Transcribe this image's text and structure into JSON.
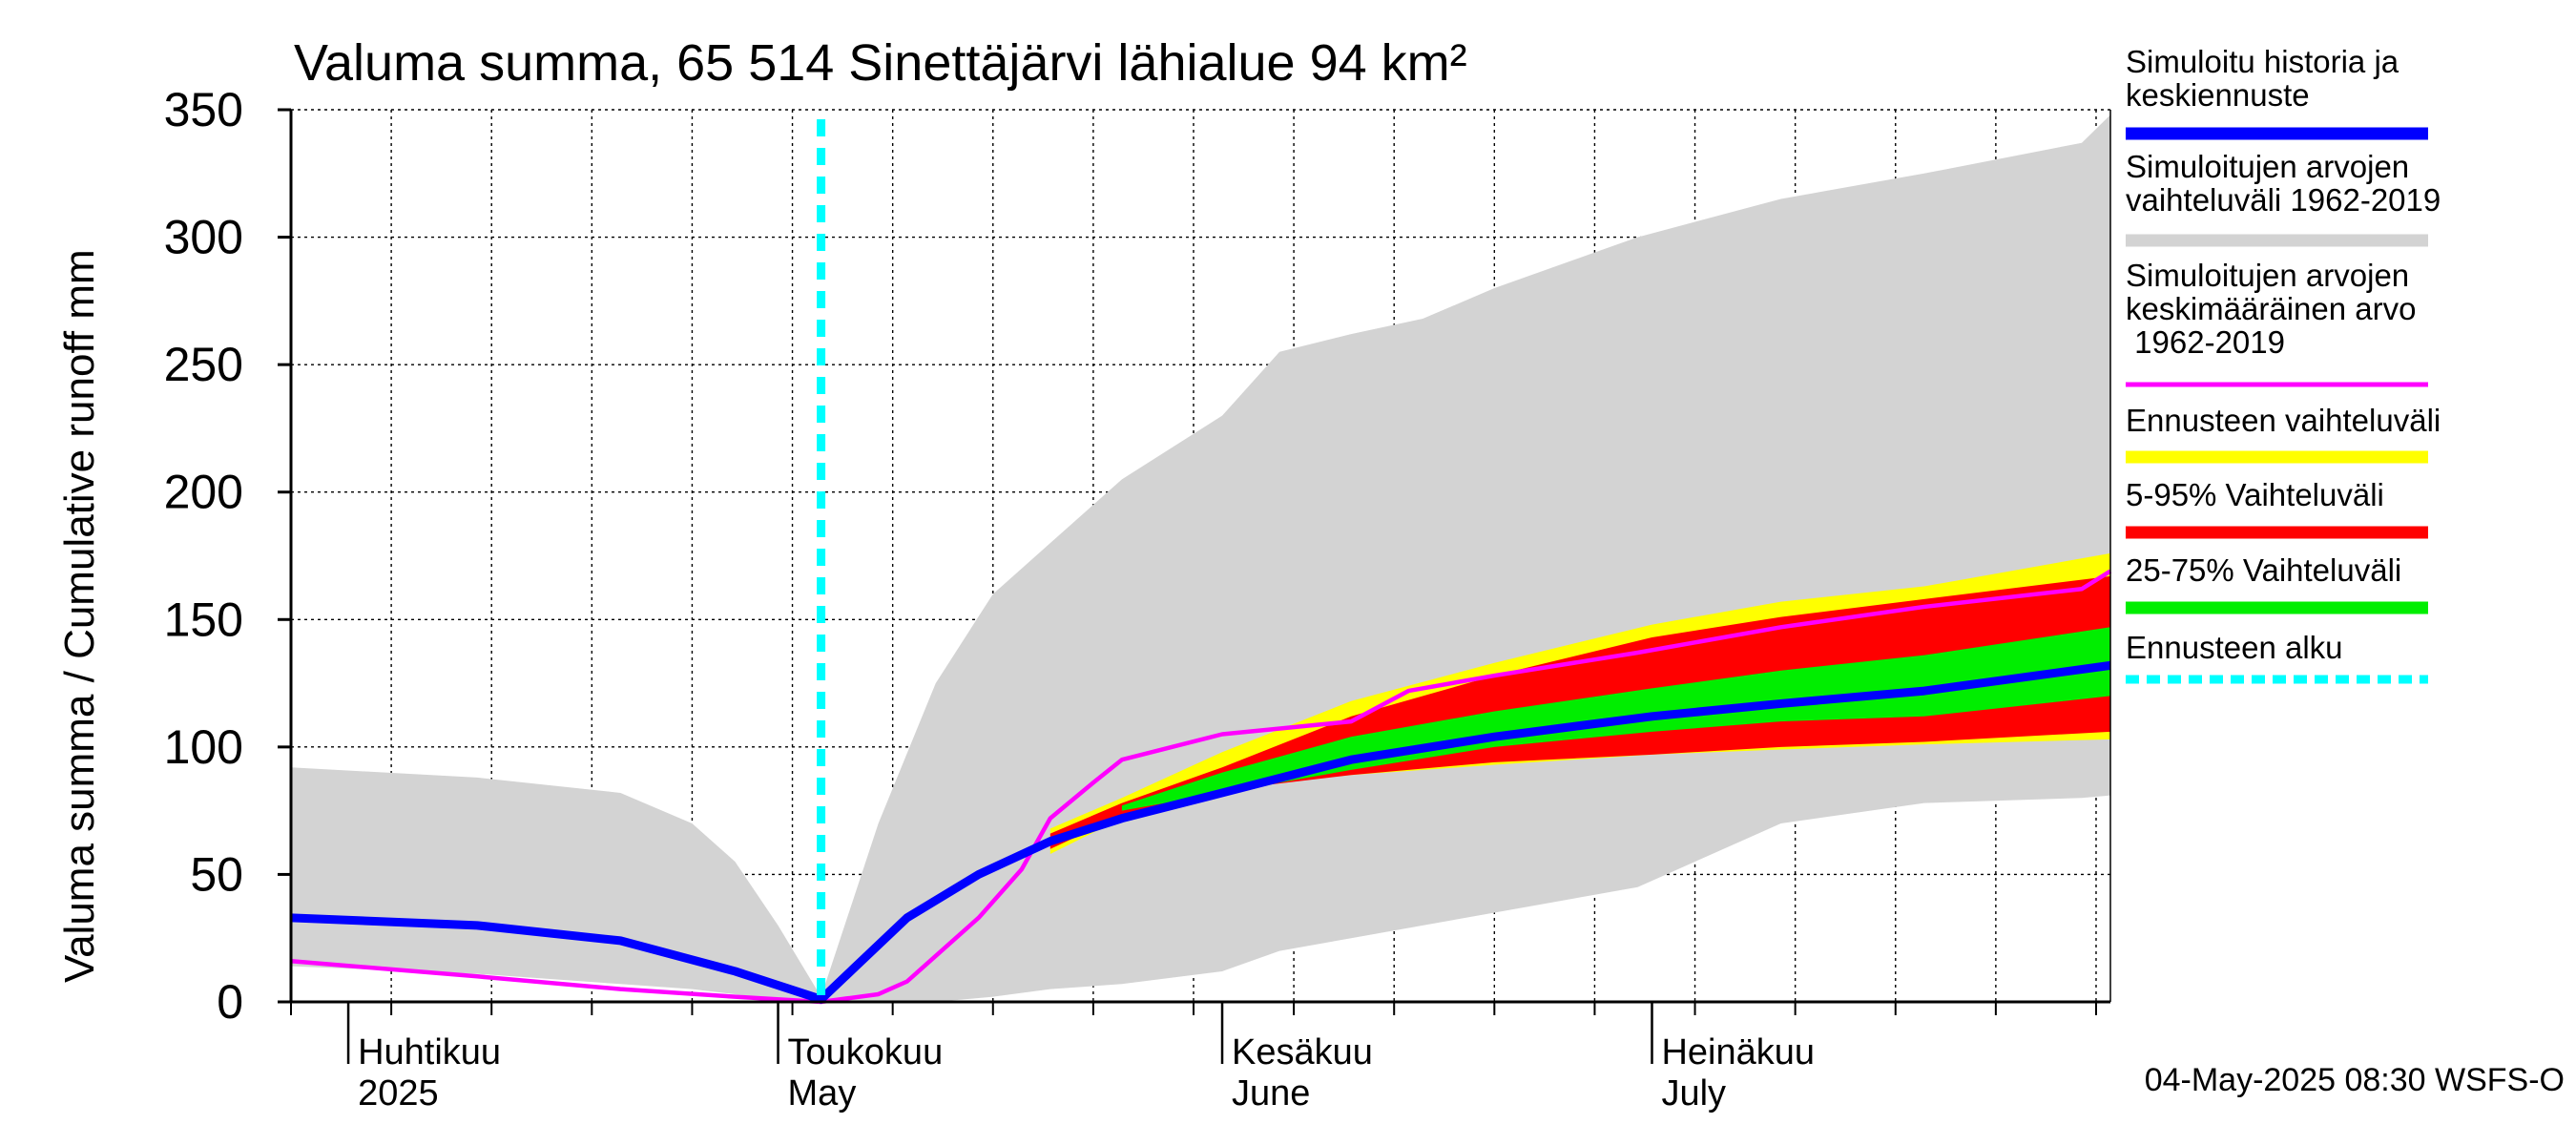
{
  "chart_data": {
    "type": "area",
    "title": "Valuma summa, 65 514 Sinettäjärvi lähialue 94 km²",
    "ylabel": "Valuma summa / Cumulative runoff    mm",
    "xlabel": "",
    "ylim": [
      0,
      350
    ],
    "xlim": [
      "2025-03-28",
      "2025-08-02"
    ],
    "y_ticks": [
      "0",
      "50",
      "100",
      "150",
      "200",
      "250",
      "300",
      "350"
    ],
    "month_labels": [
      {
        "fi": "Huhtikuu",
        "en": "2025",
        "date": "2025-04-01"
      },
      {
        "fi": "Toukokuu",
        "en": "May",
        "date": "2025-05-01"
      },
      {
        "fi": "Kesäkuu",
        "en": "June",
        "date": "2025-06-01"
      },
      {
        "fi": "Heinäkuu",
        "en": "July",
        "date": "2025-07-01"
      }
    ],
    "grid": true,
    "legend_position": "right",
    "forecast_start": "2025-05-04",
    "timestamp": "04-May-2025 08:30 WSFS-O",
    "colors": {
      "history_range": "#d3d3d3",
      "forecast_range": "#ffff00",
      "p5_95": "#ff0000",
      "p25_75": "#00ee00",
      "median": "#0000ff",
      "mean": "#ff00ff",
      "forecast_start": "#00ffff"
    },
    "series": [
      {
        "name": "Simuloitujen arvojen vaihteluväli 1962-2019",
        "kind": "band",
        "x": [
          "2025-03-28",
          "2025-04-10",
          "2025-04-20",
          "2025-04-25",
          "2025-04-28",
          "2025-05-01",
          "2025-05-04",
          "2025-05-08",
          "2025-05-12",
          "2025-05-16",
          "2025-05-20",
          "2025-05-25",
          "2025-06-01",
          "2025-06-05",
          "2025-06-10",
          "2025-06-15",
          "2025-06-20",
          "2025-06-30",
          "2025-07-10",
          "2025-07-20",
          "2025-07-31",
          "2025-08-02"
        ],
        "upper": [
          92,
          88,
          82,
          70,
          55,
          30,
          2,
          70,
          125,
          160,
          180,
          205,
          230,
          255,
          262,
          268,
          280,
          300,
          315,
          325,
          337,
          348
        ],
        "lower": [
          14,
          11,
          7,
          5,
          3,
          1,
          0,
          0,
          0,
          2,
          5,
          7,
          12,
          20,
          25,
          30,
          35,
          45,
          70,
          78,
          80,
          81
        ]
      },
      {
        "name": "Ennusteen vaihteluväli",
        "kind": "band",
        "x": [
          "2025-05-20",
          "2025-05-25",
          "2025-06-01",
          "2025-06-10",
          "2025-06-20",
          "2025-07-01",
          "2025-07-10",
          "2025-07-20",
          "2025-08-02"
        ],
        "upper": [
          68,
          80,
          98,
          118,
          133,
          148,
          157,
          163,
          176
        ],
        "lower": [
          58,
          72,
          84,
          89,
          93,
          97,
          99,
          101,
          103
        ]
      },
      {
        "name": "5-95% Vaihteluväli",
        "kind": "band",
        "x": [
          "2025-05-20",
          "2025-05-25",
          "2025-06-01",
          "2025-06-10",
          "2025-06-20",
          "2025-07-01",
          "2025-07-10",
          "2025-07-20",
          "2025-08-02"
        ],
        "upper": [
          66,
          78,
          92,
          112,
          128,
          143,
          151,
          158,
          167
        ],
        "lower": [
          60,
          73,
          83,
          89,
          94,
          97,
          100,
          102,
          106
        ]
      },
      {
        "name": "25-75% Vaihteluväli",
        "kind": "band",
        "x": [
          "2025-05-25",
          "2025-06-01",
          "2025-06-10",
          "2025-06-20",
          "2025-07-01",
          "2025-07-10",
          "2025-07-20",
          "2025-08-02"
        ],
        "upper": [
          77,
          90,
          104,
          114,
          123,
          130,
          136,
          147
        ],
        "lower": [
          75,
          82,
          91,
          100,
          106,
          110,
          112,
          120
        ]
      },
      {
        "name": "Simuloitu historia ja keskiennuste",
        "kind": "line",
        "x": [
          "2025-03-28",
          "2025-04-10",
          "2025-04-20",
          "2025-04-28",
          "2025-05-04",
          "2025-05-10",
          "2025-05-15",
          "2025-05-20",
          "2025-05-25",
          "2025-06-01",
          "2025-06-10",
          "2025-06-20",
          "2025-07-01",
          "2025-07-10",
          "2025-07-20",
          "2025-08-02"
        ],
        "values": [
          33,
          30,
          24,
          12,
          1,
          33,
          50,
          63,
          72,
          82,
          95,
          104,
          112,
          117,
          122,
          132
        ]
      },
      {
        "name": "Simuloitujen arvojen keskimääräinen arvo 1962-2019",
        "kind": "line",
        "x": [
          "2025-03-28",
          "2025-04-10",
          "2025-04-20",
          "2025-04-28",
          "2025-05-04",
          "2025-05-08",
          "2025-05-10",
          "2025-05-15",
          "2025-05-18",
          "2025-05-20",
          "2025-05-23",
          "2025-05-25",
          "2025-06-01",
          "2025-06-10",
          "2025-06-14",
          "2025-06-20",
          "2025-06-30",
          "2025-07-10",
          "2025-07-20",
          "2025-07-31",
          "2025-08-02"
        ],
        "values": [
          16,
          10,
          5,
          2,
          0,
          3,
          8,
          33,
          52,
          72,
          86,
          95,
          105,
          110,
          122,
          128,
          137,
          147,
          155,
          162,
          169
        ]
      }
    ]
  },
  "legend": [
    {
      "label": "Simuloitu historia ja keskiennuste",
      "style": "line",
      "color": "#0000ff"
    },
    {
      "label": "Simuloitujen arvojen vaihteluväli 1962-2019",
      "style": "line",
      "color": "#d3d3d3"
    },
    {
      "label": "Simuloitujen arvojen keskimääräinen arvo 1962-2019",
      "style": "thin",
      "color": "#ff00ff"
    },
    {
      "label": "Ennusteen vaihteluväli",
      "style": "line",
      "color": "#ffff00"
    },
    {
      "label": "5-95% Vaihteluväli",
      "style": "line",
      "color": "#ff0000"
    },
    {
      "label": "25-75% Vaihteluväli",
      "style": "line",
      "color": "#00ee00"
    },
    {
      "label": "Ennusteen alku",
      "style": "dashed",
      "color": "#00ffff"
    }
  ]
}
